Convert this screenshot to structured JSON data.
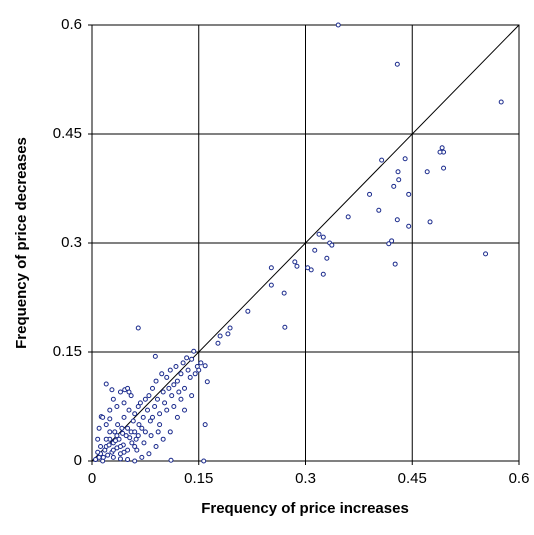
{
  "chart_data": {
    "type": "scatter",
    "x_label": "Frequency of price increases",
    "y_label": "Frequency of price decreases",
    "color": "#1a2a8c",
    "grid": true,
    "diagonal": true,
    "xlim": [
      0,
      0.6
    ],
    "ylim": [
      0,
      0.6
    ],
    "xticks": [
      0,
      0.15,
      0.3,
      0.45,
      0.6
    ],
    "yticks": [
      0,
      0.15,
      0.3,
      0.45,
      0.6
    ],
    "x": [
      0.346,
      0.429,
      0.575,
      0.492,
      0.494,
      0.489,
      0.494,
      0.44,
      0.407,
      0.43,
      0.471,
      0.39,
      0.445,
      0.424,
      0.431,
      0.403,
      0.429,
      0.36,
      0.445,
      0.475,
      0.421,
      0.417,
      0.334,
      0.337,
      0.319,
      0.325,
      0.553,
      0.426,
      0.33,
      0.313,
      0.325,
      0.252,
      0.285,
      0.288,
      0.308,
      0.303,
      0.252,
      0.27,
      0.271,
      0.219,
      0.194,
      0.191,
      0.18,
      0.177,
      0.065,
      0.143,
      0.133,
      0.153,
      0.159,
      0.162,
      0.159,
      0.157,
      0.089,
      0.02,
      0.028,
      0.046,
      0.052,
      0.013,
      0.025,
      0.111,
      0.005,
      0.01,
      0.012,
      0.015,
      0.018,
      0.02,
      0.022,
      0.025,
      0.028,
      0.03,
      0.032,
      0.035,
      0.036,
      0.038,
      0.04,
      0.042,
      0.044,
      0.045,
      0.048,
      0.05,
      0.052,
      0.055,
      0.056,
      0.058,
      0.06,
      0.062,
      0.065,
      0.066,
      0.068,
      0.07,
      0.072,
      0.075,
      0.078,
      0.08,
      0.082,
      0.085,
      0.088,
      0.09,
      0.092,
      0.095,
      0.098,
      0.1,
      0.102,
      0.105,
      0.108,
      0.11,
      0.112,
      0.115,
      0.118,
      0.12,
      0.122,
      0.125,
      0.128,
      0.13,
      0.135,
      0.138,
      0.14,
      0.145,
      0.148,
      0.15,
      0.008,
      0.01,
      0.015,
      0.02,
      0.025,
      0.03,
      0.035,
      0.04,
      0.045,
      0.05,
      0.055,
      0.06,
      0.07,
      0.08,
      0.09,
      0.1,
      0.11,
      0.12,
      0.13,
      0.14,
      0.012,
      0.03,
      0.04,
      0.05,
      0.025,
      0.035,
      0.045,
      0.06,
      0.065,
      0.075,
      0.085,
      0.095,
      0.105,
      0.115,
      0.125,
      0.02,
      0.03,
      0.04,
      0.05,
      0.06,
      0.008,
      0.016,
      0.024,
      0.033,
      0.043,
      0.053,
      0.063,
      0.073,
      0.083,
      0.093
    ],
    "values": [
      0.6,
      0.546,
      0.494,
      0.431,
      0.425,
      0.425,
      0.403,
      0.416,
      0.414,
      0.398,
      0.398,
      0.367,
      0.367,
      0.378,
      0.387,
      0.345,
      0.332,
      0.336,
      0.323,
      0.329,
      0.303,
      0.299,
      0.3,
      0.297,
      0.312,
      0.308,
      0.285,
      0.271,
      0.279,
      0.29,
      0.257,
      0.266,
      0.274,
      0.268,
      0.263,
      0.266,
      0.242,
      0.231,
      0.184,
      0.206,
      0.183,
      0.175,
      0.172,
      0.162,
      0.183,
      0.151,
      0.142,
      0.135,
      0.131,
      0.109,
      0.05,
      0.0,
      0.144,
      0.106,
      0.098,
      0.098,
      0.095,
      0.061,
      0.058,
      0.001,
      0.002,
      0.005,
      0.01,
      0.0,
      0.015,
      0.02,
      0.008,
      0.03,
      0.012,
      0.025,
      0.04,
      0.018,
      0.05,
      0.03,
      0.01,
      0.045,
      0.022,
      0.06,
      0.035,
      0.015,
      0.07,
      0.04,
      0.025,
      0.055,
      0.065,
      0.03,
      0.075,
      0.05,
      0.08,
      0.045,
      0.06,
      0.085,
      0.07,
      0.09,
      0.055,
      0.1,
      0.075,
      0.11,
      0.085,
      0.065,
      0.12,
      0.095,
      0.08,
      0.115,
      0.1,
      0.125,
      0.09,
      0.105,
      0.13,
      0.11,
      0.095,
      0.12,
      0.135,
      0.1,
      0.125,
      0.115,
      0.14,
      0.12,
      0.13,
      0.125,
      0.03,
      0.045,
      0.06,
      0.05,
      0.07,
      0.085,
      0.075,
      0.095,
      0.08,
      0.1,
      0.09,
      0.0,
      0.005,
      0.01,
      0.02,
      0.03,
      0.04,
      0.06,
      0.07,
      0.09,
      0.02,
      0.005,
      0.003,
      0.002,
      0.04,
      0.035,
      0.012,
      0.02,
      0.035,
      0.04,
      0.06,
      0.05,
      0.07,
      0.075,
      0.085,
      0.03,
      0.015,
      0.02,
      0.045,
      0.04,
      0.012,
      0.005,
      0.022,
      0.028,
      0.038,
      0.032,
      0.015,
      0.025,
      0.035,
      0.04
    ]
  }
}
